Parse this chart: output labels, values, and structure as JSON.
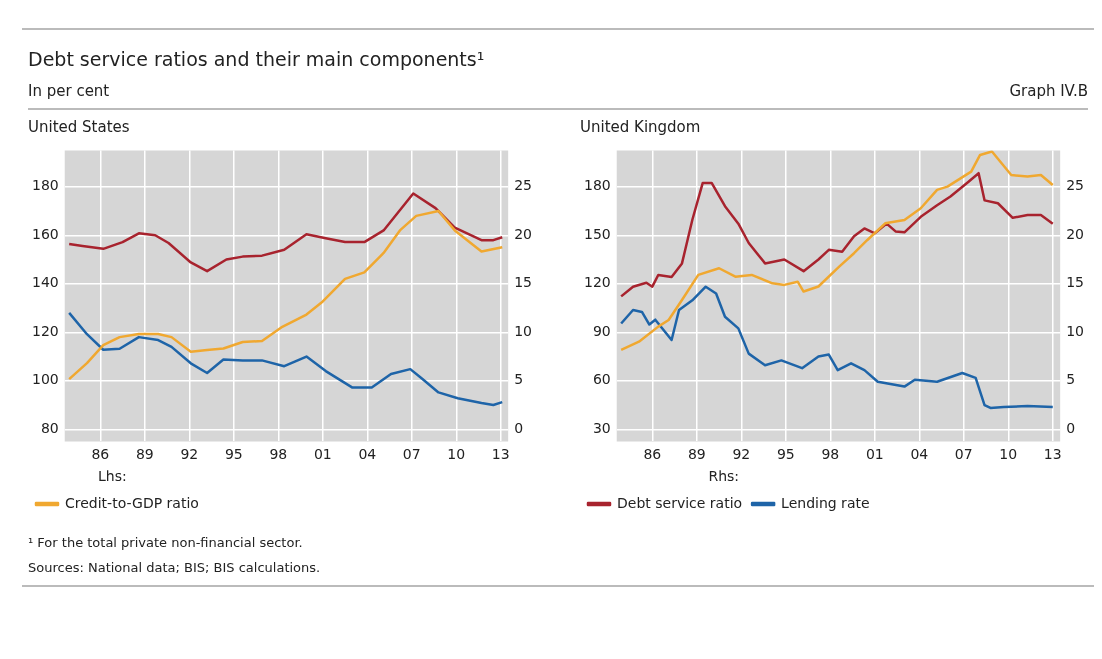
{
  "chart_data": [
    {
      "type": "line",
      "title": "United States",
      "legend": "bottom",
      "legend_title": "Lhs:",
      "grid": true,
      "annotations": [
        "Debt service ratios and their main components¹",
        "In per cent",
        "Graph IV.B",
        "¹ For the total private non-financial sector.",
        "Sources: National data; BIS; BIS calculations."
      ],
      "xlim": [
        1983.6,
        2013.5
      ],
      "xticks": [
        {
          "value": 1986,
          "label": "86"
        },
        {
          "value": 1989,
          "label": "89"
        },
        {
          "value": 1992,
          "label": "92"
        },
        {
          "value": 1995,
          "label": "95"
        },
        {
          "value": 1998,
          "label": "98"
        },
        {
          "value": 2001,
          "label": "01"
        },
        {
          "value": 2004,
          "label": "04"
        },
        {
          "value": 2007,
          "label": "07"
        },
        {
          "value": 2010,
          "label": "10"
        },
        {
          "value": 2013,
          "label": "13"
        }
      ],
      "ylim": [
        75,
        195
      ],
      "yticks": [
        80,
        100,
        120,
        140,
        160,
        180
      ],
      "y2lim": [
        -1.25,
        28.75
      ],
      "y2ticks": [
        0,
        5,
        10,
        15,
        20,
        25
      ],
      "series": [
        {
          "name": "Credit-to-GDP ratio",
          "color": "#f0a830",
          "x": [
            1983.9,
            1985.1,
            1986.2,
            1987.3,
            1988.6,
            1989.9,
            1990.8,
            1992.1,
            1993.2,
            1994.3,
            1995.6,
            1996.9,
            1998.2,
            1999.9,
            2001,
            2002.5,
            2003.8,
            2005.1,
            2006.2,
            2007.3,
            2008.8,
            2009.9,
            2011.7,
            2013.1
          ],
          "values": [
            100.7,
            107.3,
            114.7,
            118,
            119.3,
            119.3,
            118,
            112,
            112.7,
            113.3,
            116,
            116.4,
            122,
            127.3,
            132.7,
            142,
            144.7,
            152.7,
            162,
            168,
            170,
            162,
            153.3,
            155.1
          ]
        },
        {
          "color": "#a8232e",
          "axis": "y2",
          "x": [
            1983.9,
            1984.8,
            1986.2,
            1987.5,
            1988.6,
            1989.7,
            1990.6,
            1992.1,
            1993.2,
            1994.5,
            1995.6,
            1996.9,
            1998.4,
            1999.9,
            2001.2,
            2002.5,
            2003.8,
            2005.1,
            2007.1,
            2008.6,
            2009.9,
            2011.7,
            2012.5,
            2013.1
          ],
          "values": [
            19.1,
            18.9,
            18.6,
            19.3,
            20.2,
            20,
            19.2,
            17.2,
            16.3,
            17.5,
            17.8,
            17.9,
            18.5,
            20.1,
            19.7,
            19.3,
            19.3,
            20.5,
            24.3,
            22.8,
            20.8,
            19.5,
            19.5,
            19.8
          ]
        },
        {
          "color": "#1e64a8",
          "axis": "y2",
          "x": [
            1983.9,
            1985.1,
            1986.2,
            1987.3,
            1988.6,
            1989.9,
            1990.8,
            1992.1,
            1993.2,
            1994.3,
            1995.6,
            1996.9,
            1998.4,
            1999.9,
            2001.2,
            2003,
            2004.3,
            2005.6,
            2006.9,
            2007.7,
            2008.8,
            2010.1,
            2011.7,
            2012.5,
            2013.1
          ],
          "values": [
            12,
            9.8,
            8.2,
            8.3,
            9.5,
            9.2,
            8.5,
            6.8,
            5.8,
            7.2,
            7.1,
            7.1,
            6.5,
            7.5,
            6,
            4.3,
            4.3,
            5.7,
            6.2,
            5.2,
            3.8,
            3.2,
            2.7,
            2.5,
            2.8
          ]
        }
      ]
    },
    {
      "type": "line",
      "title": "United Kingdom",
      "legend": "bottom",
      "legend_title": "Rhs:",
      "grid": true,
      "xlim": [
        1983.6,
        2013.5
      ],
      "xticks": [
        {
          "value": 1986,
          "label": "86"
        },
        {
          "value": 1989,
          "label": "89"
        },
        {
          "value": 1992,
          "label": "92"
        },
        {
          "value": 1995,
          "label": "95"
        },
        {
          "value": 1998,
          "label": "98"
        },
        {
          "value": 2001,
          "label": "01"
        },
        {
          "value": 2004,
          "label": "04"
        },
        {
          "value": 2007,
          "label": "07"
        },
        {
          "value": 2010,
          "label": "10"
        },
        {
          "value": 2013,
          "label": "13"
        }
      ],
      "ylim": [
        22.5,
        202.5
      ],
      "yticks": [
        30,
        60,
        90,
        120,
        150,
        180
      ],
      "y2lim": [
        -1.25,
        28.75
      ],
      "y2ticks": [
        0,
        5,
        10,
        15,
        20,
        25
      ],
      "series": [
        {
          "color": "#f0a830",
          "x": [
            1983.9,
            1985.1,
            1986.4,
            1987.1,
            1988,
            1989.1,
            1990.5,
            1991.6,
            1992.7,
            1994.1,
            1994.9,
            1995.8,
            1996.2,
            1997.2,
            1998.6,
            1999.6,
            2000.5,
            2001.7,
            2003,
            2004.1,
            2005.2,
            2005.9,
            2007.5,
            2008.1,
            2008.9,
            2010.2,
            2011.3,
            2012.2,
            2013
          ],
          "values": [
            79.1,
            84.2,
            93.5,
            97.6,
            110,
            125.5,
            129.6,
            124.4,
            125.5,
            120.3,
            119.3,
            121.3,
            115.2,
            118.3,
            130.6,
            138.9,
            147.1,
            157.4,
            159.5,
            166.7,
            178.1,
            180.1,
            189.4,
            199.7,
            201.8,
            187.3,
            186.3,
            187.3,
            181.1
          ]
        },
        {
          "name": "Debt service ratio",
          "color": "#a8232e",
          "axis": "y2",
          "x": [
            1983.9,
            1984.7,
            1985.6,
            1986,
            1986.4,
            1987.3,
            1988,
            1988.7,
            1989.4,
            1990,
            1990.9,
            1991.8,
            1992.5,
            1993.6,
            1994.9,
            1996.2,
            1997.2,
            1997.9,
            1998.8,
            1999.6,
            2000.3,
            2001,
            2001.8,
            2002.4,
            2003,
            2004.1,
            2005.2,
            2006.1,
            2007.3,
            2008,
            2008.4,
            2009.3,
            2010.3,
            2011.3,
            2012.2,
            2013
          ],
          "values": [
            13.7,
            14.7,
            15.1,
            14.7,
            15.9,
            15.7,
            17.1,
            21.6,
            25.4,
            25.4,
            23,
            21.2,
            19.2,
            17.1,
            17.5,
            16.3,
            17.5,
            18.5,
            18.3,
            19.9,
            20.7,
            20.2,
            21.2,
            20.4,
            20.3,
            21.9,
            23.1,
            24,
            25.5,
            26.4,
            23.6,
            23.3,
            21.8,
            22.1,
            22.1,
            21.2
          ]
        },
        {
          "name": "Lending rate",
          "color": "#1e64a8",
          "axis": "y2",
          "x": [
            1983.9,
            1984.7,
            1985.3,
            1985.8,
            1986.2,
            1987.3,
            1987.8,
            1988.7,
            1989.6,
            1990.3,
            1990.9,
            1991.8,
            1992.5,
            1993.6,
            1994.7,
            1996.1,
            1997.2,
            1997.9,
            1998.5,
            1999.4,
            2000.3,
            2001.2,
            2003,
            2003.7,
            2005.2,
            2006.9,
            2007.8,
            2008.4,
            2008.8,
            2009.7,
            2011.3,
            2013
          ],
          "values": [
            10.9,
            12.3,
            12.1,
            10.8,
            11.3,
            9.2,
            12.3,
            13.3,
            14.7,
            14,
            11.6,
            10.4,
            7.8,
            6.6,
            7.1,
            6.3,
            7.5,
            7.7,
            6.1,
            6.8,
            6.1,
            4.9,
            4.4,
            5.1,
            4.9,
            5.8,
            5.3,
            2.5,
            2.2,
            2.3,
            2.4,
            2.3
          ]
        }
      ]
    }
  ]
}
